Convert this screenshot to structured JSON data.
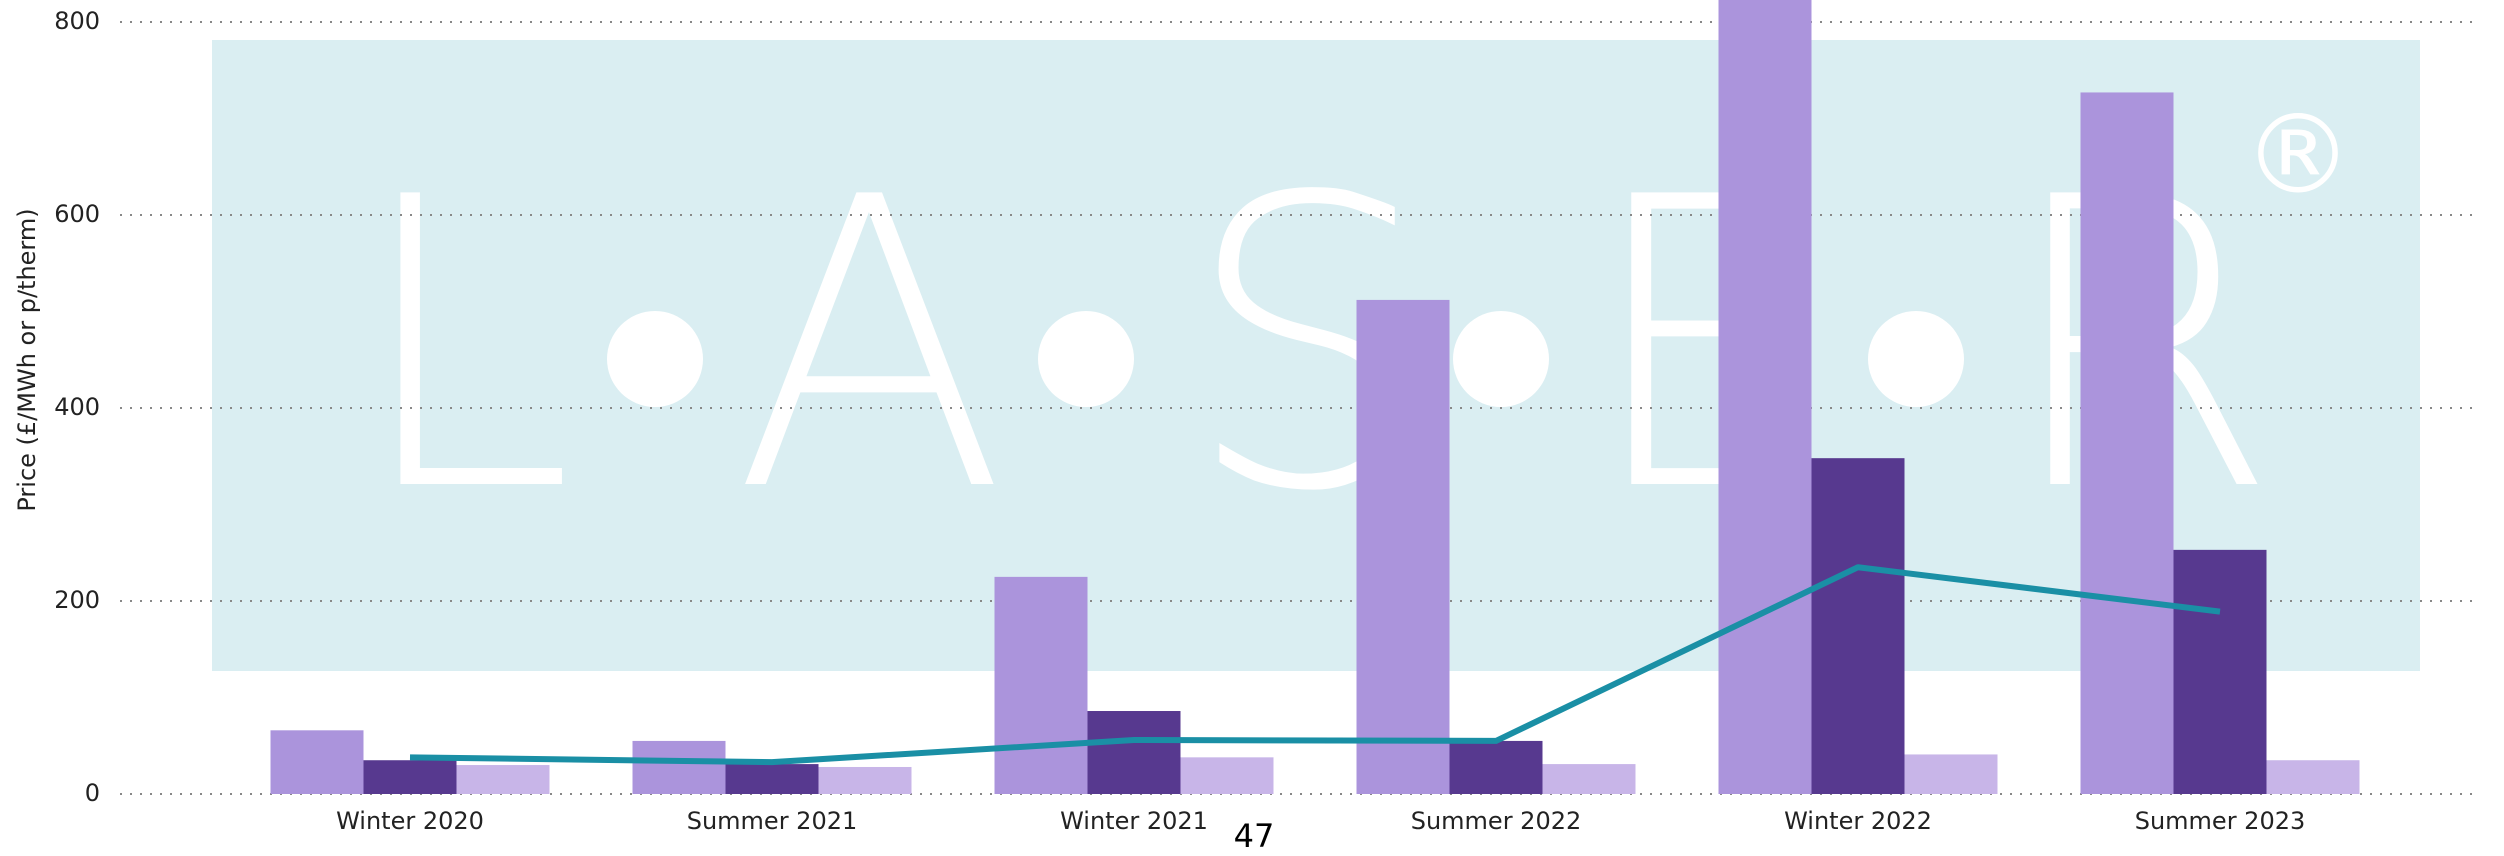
{
  "chart_data": {
    "type": "bar",
    "y_label": "Price (£/MWh or p/therm)",
    "categories": [
      "Winter 2020",
      "Summer 2021",
      "Winter 2021",
      "Summer 2022",
      "Winter 2022",
      "Summer 2023"
    ],
    "series": [
      {
        "color": "#ab94dc",
        "values": [
          66,
          55,
          225,
          512,
          823,
          727
        ]
      },
      {
        "color": "#57398f",
        "values": [
          35,
          31,
          86,
          55,
          348,
          253
        ]
      },
      {
        "color": "#c8b5e8",
        "values": [
          30,
          28,
          38,
          31,
          41,
          35
        ]
      },
      {
        "type": "line",
        "color": "#1a8fa5",
        "values": [
          38,
          33,
          56,
          55,
          235,
          189
        ]
      }
    ],
    "ylim": [
      0,
      800
    ],
    "yticks": [
      0,
      200,
      400,
      600,
      800
    ],
    "grid": true,
    "watermark": {
      "letters": [
        "L",
        "A",
        "S",
        "E",
        "R"
      ],
      "mark": "®"
    },
    "page_number": "47"
  }
}
